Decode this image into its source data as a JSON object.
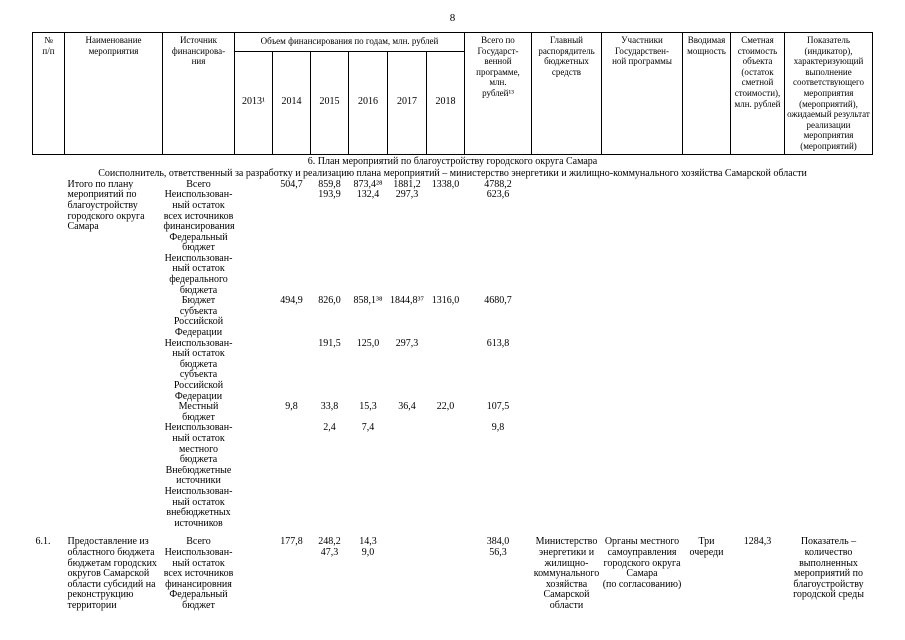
{
  "page": {
    "number": "8"
  },
  "table": {
    "header": {
      "num": "№\nп/п",
      "name": "Наименование\nмероприятия",
      "source": "Источник\nфинансирова-\nния",
      "volume_group": "Объем финансирования по годам, млн. рублей",
      "years": [
        "2013¹",
        "2014",
        "2015",
        "2016",
        "2017",
        "2018"
      ],
      "total": "Всего по\nГосударст-\nвенной\nпрограмме,\nмлн.\nрублей¹³",
      "manager": "Главный\nраспорядитель\nбюджетных\nсредств",
      "participants": "Участники\nГосударствен-\nной программы",
      "capacity": "Вводимая\nмощность",
      "cost": "Сметная\nстоимость\nобъекта\n(остаток\nсметной\nстоимости),\nмлн. рублей",
      "indicator": "Показатель\n(индикатор),\nхарактеризующий\nвыполнение\nсоответствующего\nмероприятия\n(мероприятий),\nожидаемый результат\nреализации\nмероприятия\n(мероприятий)"
    },
    "section_title": "6. План мероприятий по благоустройству городского округа Самара",
    "section_subtitle": "Соисполнитель, ответственный за разработку и реализацию плана мероприятий – министерство энергетики и жилищно-коммунального хозяйства Самарской области",
    "rows": [
      {
        "num": "",
        "name": "Итого по плану\nмероприятий по\nблагоустройству\nгородского округа\nСамара",
        "sources": [
          {
            "label": "Всего",
            "values": [
              "",
              "504,7",
              "859,8",
              "873,4²⁸",
              "1881,2",
              "1338,0",
              "4788,2"
            ]
          },
          {
            "label": "Неиспользован-\nный остаток\nвсех источников\nфинансирования",
            "values": [
              "",
              "",
              "193,9",
              "132,4",
              "297,3",
              "",
              "623,6"
            ]
          },
          {
            "label": "Федеральный\nбюджет",
            "values": [
              "",
              "",
              "",
              "",
              "",
              "",
              ""
            ]
          },
          {
            "label": "Неиспользован-\nный остаток\nфедерального\nбюджета",
            "values": [
              "",
              "",
              "",
              "",
              "",
              "",
              ""
            ]
          },
          {
            "label": "Бюджет\nсубъекта\nРоссийской\nФедерации",
            "values": [
              "",
              "494,9",
              "826,0",
              "858,1³⁸",
              "1844,8³⁷",
              "1316,0",
              "4680,7"
            ]
          },
          {
            "label": "Неиспользован-\nный остаток\nбюджета\nсубъекта\nРоссийской\nФедерации",
            "values": [
              "",
              "",
              "191,5",
              "125,0",
              "297,3",
              "",
              "613,8"
            ]
          },
          {
            "label": "Местный\nбюджет",
            "values": [
              "",
              "9,8",
              "33,8",
              "15,3",
              "36,4",
              "22,0",
              "107,5"
            ]
          },
          {
            "label": "Неиспользован-\nный остаток\nместного\nбюджета",
            "values": [
              "",
              "",
              "2,4",
              "7,4",
              "",
              "",
              "9,8"
            ]
          },
          {
            "label": "Внебюджетные\nисточники",
            "values": [
              "",
              "",
              "",
              "",
              "",
              "",
              ""
            ]
          },
          {
            "label": "Неиспользован-\nный остаток\nвнебюджетных\nисточников",
            "values": [
              "",
              "",
              "",
              "",
              "",
              "",
              ""
            ]
          }
        ],
        "manager": "",
        "participants": "",
        "capacity": "",
        "cost": "",
        "indicator": ""
      },
      {
        "num": "6.1.",
        "name": "Предоставление из\nобластного бюджета\nбюджетам городских\nокругов Самарской\nобласти субсидий на\nреконструкцию\nтерритории",
        "sources": [
          {
            "label": "Всего",
            "values": [
              "",
              "177,8",
              "248,2",
              "14,3",
              "",
              "",
              "384,0"
            ]
          },
          {
            "label": "Неиспользован-\nный остаток\nвсех источников\nфинансировния",
            "values": [
              "",
              "",
              "47,3",
              "9,0",
              "",
              "",
              "56,3"
            ]
          },
          {
            "label": "Федеральный\nбюджет",
            "values": [
              "",
              "",
              "",
              "",
              "",
              "",
              ""
            ]
          }
        ],
        "manager": "Министерство\nэнергетики и\nжилищно-\nкоммунального\nхозяйства\nСамарской\nобласти",
        "participants": "Органы местного\nсамоуправления\nгородского округа\nСамара\n(по согласованию)",
        "capacity": "Три очереди",
        "cost": "1284,3",
        "indicator": "Показатель –\nколичество\nвыполненных\nмероприятий по\nблагоустройству\nгородской среды"
      }
    ]
  }
}
